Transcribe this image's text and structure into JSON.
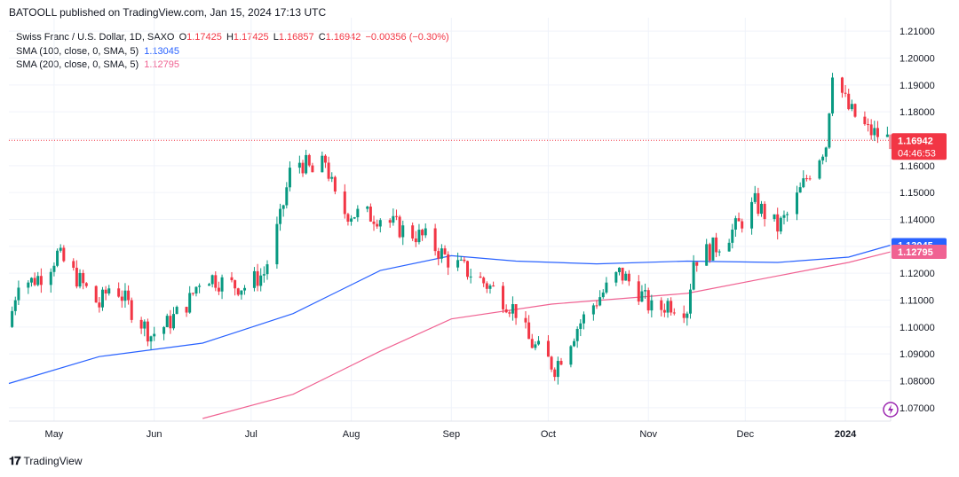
{
  "header": {
    "publisher": "BATOOLL published on TradingView.com, Jan 15, 2024 17:13 UTC"
  },
  "legend": {
    "symbol": "Swiss Franc / U.S. Dollar, 1D, SAXO",
    "o_label": "O",
    "o": "1.17425",
    "h_label": "H",
    "h": "1.17425",
    "l_label": "L",
    "l": "1.16857",
    "c_label": "C",
    "c": "1.16942",
    "change": "−0.00356 (−0.30%)",
    "sma100_label": "SMA (100, close, 0, SMA, 5)",
    "sma100_value": "1.13045",
    "sma200_label": "SMA (200, close, 0, SMA, 5)",
    "sma200_value": "1.12795"
  },
  "price_labels": {
    "last": "1.16942",
    "countdown": "04:46:53",
    "sma100": "1.13045",
    "sma200": "1.12795"
  },
  "colors": {
    "up": "#089981",
    "down": "#f23645",
    "sma100": "#2962ff",
    "sma200": "#f06292",
    "last_line": "#f23645",
    "grid": "#f0f3fa"
  },
  "footer": {
    "brand": "TradingView"
  },
  "chart_data": {
    "type": "candlestick",
    "symbol": "CHFUSD",
    "timeframe": "1D",
    "ylim": [
      1.065,
      1.215
    ],
    "y_ticks": [
      "1.21000",
      "1.20000",
      "1.19000",
      "1.18000",
      "1.17000",
      "1.16000",
      "1.15000",
      "1.14000",
      "1.13000",
      "1.12000",
      "1.11000",
      "1.10000",
      "1.09000",
      "1.08000",
      "1.07000"
    ],
    "x_ticks": [
      "May",
      "Jun",
      "Jul",
      "Aug",
      "Sep",
      "Oct",
      "Nov",
      "Dec",
      "2024"
    ],
    "close_path": [
      [
        "Apr 17",
        1.1
      ],
      [
        "Apr 20",
        1.118
      ],
      [
        "Apr 24",
        1.117
      ],
      [
        "Apr 28",
        1.12
      ],
      [
        "May 2",
        1.127
      ],
      [
        "May 9",
        1.117
      ],
      [
        "May 15",
        1.108
      ],
      [
        "May 19",
        1.117
      ],
      [
        "May 24",
        1.108
      ],
      [
        "May 31",
        1.097
      ],
      [
        "Jun 5",
        1.101
      ],
      [
        "Jun 12",
        1.11
      ],
      [
        "Jun 16",
        1.12
      ],
      [
        "Jun 23",
        1.116
      ],
      [
        "Jun 29",
        1.115
      ],
      [
        "Jul 5",
        1.12
      ],
      [
        "Jul 10",
        1.14
      ],
      [
        "Jul 14",
        1.163
      ],
      [
        "Jul 18",
        1.16
      ],
      [
        "Jul 21",
        1.156
      ],
      [
        "Jul 24",
        1.162
      ],
      [
        "Jul 28",
        1.143
      ],
      [
        "Aug 3",
        1.142
      ],
      [
        "Aug 10",
        1.141
      ],
      [
        "Aug 17",
        1.136
      ],
      [
        "Aug 24",
        1.133
      ],
      [
        "Aug 31",
        1.125
      ],
      [
        "Sep 7",
        1.12
      ],
      [
        "Sep 14",
        1.114
      ],
      [
        "Sep 21",
        1.106
      ],
      [
        "Sep 25",
        1.095
      ],
      [
        "Sep 29",
        1.09
      ],
      [
        "Oct 3",
        1.085
      ],
      [
        "Oct 10",
        1.1
      ],
      [
        "Oct 16",
        1.11
      ],
      [
        "Oct 23",
        1.12
      ],
      [
        "Oct 28",
        1.115
      ],
      [
        "Nov 3",
        1.105
      ],
      [
        "Nov 7",
        1.109
      ],
      [
        "Nov 13",
        1.107
      ],
      [
        "Nov 15",
        1.125
      ],
      [
        "Nov 22",
        1.13
      ],
      [
        "Nov 29",
        1.138
      ],
      [
        "Dec 4",
        1.146
      ],
      [
        "Dec 11",
        1.137
      ],
      [
        "Dec 15",
        1.143
      ],
      [
        "Dec 21",
        1.158
      ],
      [
        "Dec 26",
        1.168
      ],
      [
        "Dec 28",
        1.196
      ],
      [
        "Jan 2",
        1.181
      ],
      [
        "Jan 8",
        1.173
      ],
      [
        "Jan 15",
        1.16942
      ]
    ],
    "sma100_path": [
      [
        "Apr 17",
        1.079
      ],
      [
        "May 15",
        1.089
      ],
      [
        "Jun 16",
        1.094
      ],
      [
        "Jul 14",
        1.105
      ],
      [
        "Aug 10",
        1.121
      ],
      [
        "Sep 1",
        1.1265
      ],
      [
        "Sep 21",
        1.1245
      ],
      [
        "Oct 16",
        1.1235
      ],
      [
        "Nov 13",
        1.1245
      ],
      [
        "Dec 11",
        1.124
      ],
      [
        "Jan 2",
        1.126
      ],
      [
        "Jan 15",
        1.13045
      ]
    ],
    "sma200_path": [
      [
        "Jun 16",
        1.066
      ],
      [
        "Jul 14",
        1.075
      ],
      [
        "Aug 10",
        1.091
      ],
      [
        "Sep 1",
        1.103
      ],
      [
        "Oct 2",
        1.1085
      ],
      [
        "Nov 13",
        1.1125
      ],
      [
        "Dec 11",
        1.119
      ],
      [
        "Jan 2",
        1.124
      ],
      [
        "Jan 15",
        1.12795
      ]
    ]
  }
}
